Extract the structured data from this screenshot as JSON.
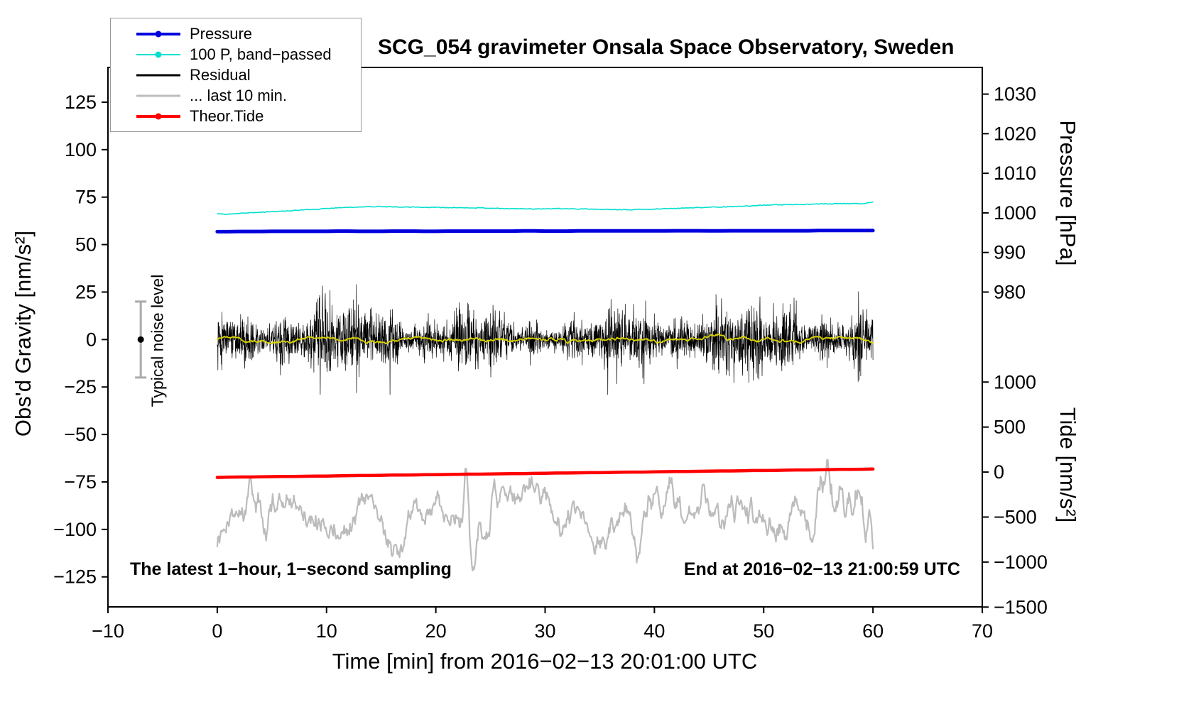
{
  "chart_data": {
    "type": "line",
    "title": "SCG_054 gravimeter Onsala Space Observatory, Sweden",
    "annotations": {
      "bottom_left": "The latest 1−hour, 1−second sampling",
      "bottom_right": "End at 2016−02−13 21:00:59 UTC"
    },
    "noise_marker": {
      "label": "Typical noise level",
      "x": -7,
      "value": 0,
      "half_range": 20,
      "bar_color": "#aaaaaa",
      "dot_color": "#000000"
    },
    "axes": {
      "x": {
        "label": "Time [min] from 2016−02−13 20:01:00 UTC",
        "range": [
          -10,
          70
        ],
        "ticks": [
          -10,
          0,
          10,
          20,
          30,
          40,
          50,
          60,
          70
        ]
      },
      "y_left": {
        "label": "Obs'd Gravity [nm/s²]",
        "range": [
          -140.8,
          143.3
        ],
        "ticks": [
          125,
          100,
          75,
          50,
          25,
          0,
          -25,
          -50,
          -75,
          -100,
          -125
        ]
      },
      "y_right_pressure": {
        "label": "Pressure [hPa]",
        "ticks": [
          1030,
          1020,
          1010,
          1000,
          990,
          980
        ],
        "anchor_value": 1000,
        "anchor_gravity": 66.7,
        "gravity_per_unit": 2.085
      },
      "y_right_tide": {
        "label": "Tide [nm/s²]",
        "ticks": [
          1000,
          500,
          0,
          -500,
          -1000,
          -1500
        ],
        "anchor_value": 0,
        "anchor_gravity": -69.8,
        "gravity_per_unit": 0.0474
      }
    },
    "legend": [
      {
        "label": "Pressure",
        "color": "#0000dd",
        "marker": true,
        "lw": 4
      },
      {
        "label": "100 P, band−passed",
        "color": "#00e0cf",
        "marker": true,
        "lw": 2
      },
      {
        "label": "Residual",
        "color": "#000000",
        "marker": false,
        "lw": 3
      },
      {
        "label": "... last 10 min.",
        "color": "#bcbcbc",
        "marker": false,
        "lw": 3
      },
      {
        "label": "Theor.Tide",
        "color": "#ff0000",
        "marker": true,
        "lw": 4
      }
    ],
    "series": [
      {
        "name": "100 P, band−passed",
        "color": "#00e0cf",
        "width": 1.6,
        "type": "points",
        "x_start": 0,
        "x_step": 1,
        "jitter": 0.18,
        "seed": 3,
        "values": [
          66.3,
          66.0,
          66.4,
          66.8,
          67.0,
          67.3,
          67.6,
          67.9,
          68.3,
          68.6,
          69.0,
          69.3,
          69.6,
          69.8,
          70.0,
          70.0,
          69.9,
          69.8,
          69.7,
          69.6,
          69.6,
          69.5,
          69.5,
          69.4,
          69.3,
          69.2,
          69.0,
          68.9,
          68.9,
          68.8,
          68.8,
          68.9,
          68.9,
          68.8,
          68.7,
          68.6,
          68.5,
          68.4,
          68.4,
          68.5,
          68.7,
          68.9,
          69.1,
          69.3,
          69.5,
          69.7,
          69.8,
          70.0,
          70.2,
          70.3,
          70.8,
          71.0,
          71.0,
          71.1,
          71.2,
          71.4,
          71.5,
          71.6,
          71.6,
          71.5,
          72.3
        ]
      },
      {
        "name": "Pressure",
        "color": "#0000dd",
        "width": 5,
        "type": "points",
        "x_start": 0,
        "x_step": 1,
        "values": [
          56.8,
          56.8,
          56.9,
          56.9,
          56.9,
          57.0,
          57.0,
          57.0,
          57.0,
          57.0,
          57.0,
          57.1,
          57.1,
          57.0,
          57.0,
          57.0,
          57.1,
          57.1,
          57.1,
          57.0,
          57.0,
          57.1,
          57.1,
          57.1,
          57.1,
          57.1,
          57.1,
          57.1,
          57.2,
          57.2,
          57.1,
          57.1,
          57.1,
          57.2,
          57.2,
          57.2,
          57.2,
          57.2,
          57.2,
          57.2,
          57.2,
          57.2,
          57.3,
          57.3,
          57.3,
          57.2,
          57.2,
          57.3,
          57.3,
          57.3,
          57.3,
          57.3,
          57.3,
          57.3,
          57.3,
          57.4,
          57.4,
          57.4,
          57.4,
          57.4,
          57.4
        ]
      },
      {
        "name": "... last 10 min.",
        "color": "#bcbcbc",
        "width": 2.2,
        "type": "smooth_noise",
        "mean": -90,
        "sigma": 8.5,
        "smooth": 11,
        "n": 900,
        "x_start": 0,
        "x_end": 60,
        "seed": 7,
        "boost": {
          "from": 53,
          "gain": 1.45
        },
        "events": [
          {
            "x": 2.9,
            "amp": 14,
            "w": 0.3
          },
          {
            "x": 4.4,
            "amp": -16,
            "w": 0.3
          },
          {
            "x": 22.8,
            "amp": 30,
            "w": 0.35
          },
          {
            "x": 23.4,
            "amp": -26,
            "w": 0.4
          },
          {
            "x": 25.3,
            "amp": 24,
            "w": 0.3
          },
          {
            "x": 38.5,
            "amp": -18,
            "w": 0.4
          },
          {
            "x": 41.5,
            "amp": 20,
            "w": 0.3
          },
          {
            "x": 56.5,
            "amp": -20,
            "w": 0.5
          },
          {
            "x": 59.3,
            "amp": -16,
            "w": 0.35
          }
        ]
      },
      {
        "name": "Theor.Tide",
        "color": "#ff0000",
        "width": 4.5,
        "type": "points",
        "x_start": 0,
        "x_step": 1,
        "values": [
          -72.6,
          -72.5,
          -72.4,
          -72.4,
          -72.3,
          -72.2,
          -72.1,
          -72.1,
          -72.0,
          -71.9,
          -71.9,
          -71.8,
          -71.7,
          -71.6,
          -71.6,
          -71.5,
          -71.4,
          -71.4,
          -71.3,
          -71.2,
          -71.2,
          -71.1,
          -71.0,
          -70.9,
          -70.9,
          -70.8,
          -70.7,
          -70.6,
          -70.6,
          -70.5,
          -70.4,
          -70.3,
          -70.3,
          -70.2,
          -70.1,
          -70.1,
          -70.0,
          -69.9,
          -69.8,
          -69.8,
          -69.7,
          -69.6,
          -69.5,
          -69.5,
          -69.4,
          -69.3,
          -69.2,
          -69.2,
          -69.1,
          -69.0,
          -69.0,
          -68.9,
          -68.8,
          -68.7,
          -68.7,
          -68.6,
          -68.5,
          -68.4,
          -68.4,
          -68.3,
          -68.2
        ]
      },
      {
        "name": "Residual",
        "color": "#000000",
        "width": 0.7,
        "type": "noise",
        "mean": 0,
        "sigma": 6,
        "n": 3000,
        "x_start": 0,
        "x_end": 60,
        "seed": 42,
        "spike_prob": 0.004,
        "spike_gain": 2.6,
        "clamp": 29
      },
      {
        "name": "Residual smoothed",
        "color": "#d8d200",
        "width": 1.8,
        "type": "smooth_noise",
        "mean": 0,
        "sigma": 0.9,
        "smooth": 15,
        "n": 1200,
        "x_start": 0,
        "x_end": 60,
        "seed": 11,
        "events": []
      }
    ]
  }
}
